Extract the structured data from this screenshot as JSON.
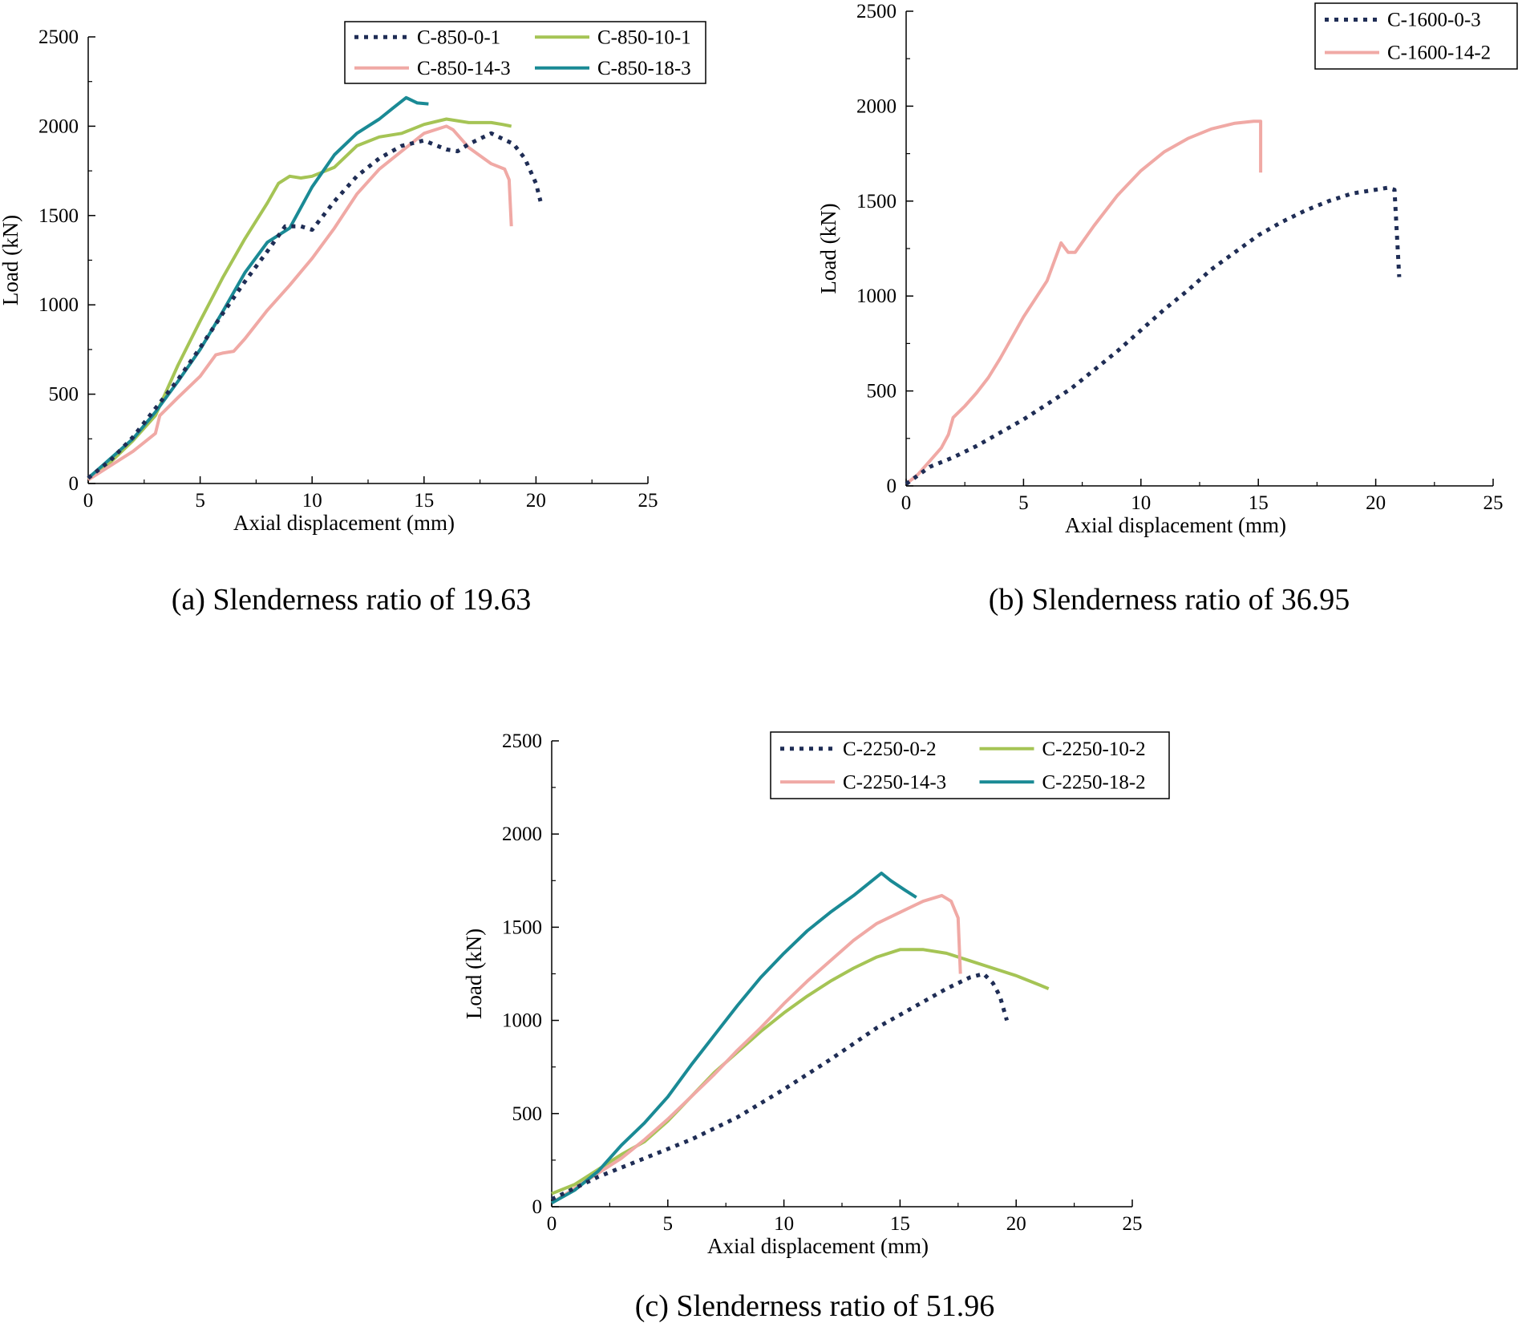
{
  "chart_data": [
    {
      "type": "line",
      "id": "a",
      "caption": "(a) Slenderness ratio of 19.63",
      "xlabel": "Axial displacement (mm)",
      "ylabel": "Load (kN)",
      "xlim": [
        0,
        25
      ],
      "ylim": [
        0,
        2500
      ],
      "xticks": [
        "0",
        "5",
        "10",
        "15",
        "20",
        "25"
      ],
      "yticks": [
        "0",
        "500",
        "1000",
        "1500",
        "2000",
        "2500"
      ],
      "legend_position": "top-right",
      "legend_columns": 2,
      "series": [
        {
          "name": "C-850-0-1",
          "color": "#1f2d55",
          "style": "dotted",
          "points": [
            [
              0,
              30
            ],
            [
              1,
              130
            ],
            [
              2,
              260
            ],
            [
              3,
              420
            ],
            [
              4,
              580
            ],
            [
              5,
              760
            ],
            [
              6,
              950
            ],
            [
              7,
              1130
            ],
            [
              8,
              1300
            ],
            [
              8.8,
              1440
            ],
            [
              9.5,
              1440
            ],
            [
              10,
              1420
            ],
            [
              10.5,
              1500
            ],
            [
              11,
              1580
            ],
            [
              12,
              1720
            ],
            [
              13,
              1820
            ],
            [
              14,
              1890
            ],
            [
              15,
              1920
            ],
            [
              16,
              1870
            ],
            [
              16.5,
              1860
            ],
            [
              17,
              1900
            ],
            [
              18,
              1960
            ],
            [
              19,
              1900
            ],
            [
              19.5,
              1820
            ],
            [
              20,
              1680
            ],
            [
              20.2,
              1580
            ]
          ]
        },
        {
          "name": "C-850-10-1",
          "color": "#a5c455",
          "style": "solid",
          "points": [
            [
              0,
              20
            ],
            [
              1,
              120
            ],
            [
              2,
              240
            ],
            [
              3,
              380
            ],
            [
              4,
              660
            ],
            [
              5,
              910
            ],
            [
              6,
              1150
            ],
            [
              7,
              1370
            ],
            [
              8,
              1570
            ],
            [
              8.5,
              1680
            ],
            [
              9,
              1720
            ],
            [
              9.5,
              1710
            ],
            [
              10,
              1720
            ],
            [
              11,
              1770
            ],
            [
              12,
              1890
            ],
            [
              13,
              1940
            ],
            [
              14,
              1960
            ],
            [
              15,
              2010
            ],
            [
              16,
              2040
            ],
            [
              17,
              2020
            ],
            [
              18,
              2020
            ],
            [
              18.5,
              2010
            ],
            [
              18.9,
              2000
            ]
          ]
        },
        {
          "name": "C-850-14-3",
          "color": "#f0a9a5",
          "style": "solid",
          "points": [
            [
              0,
              20
            ],
            [
              1,
              100
            ],
            [
              2,
              180
            ],
            [
              3,
              280
            ],
            [
              3.2,
              380
            ],
            [
              4,
              480
            ],
            [
              5,
              600
            ],
            [
              5.7,
              720
            ],
            [
              6,
              730
            ],
            [
              6.5,
              740
            ],
            [
              7,
              810
            ],
            [
              8,
              970
            ],
            [
              9,
              1110
            ],
            [
              10,
              1260
            ],
            [
              11,
              1430
            ],
            [
              12,
              1620
            ],
            [
              13,
              1760
            ],
            [
              14,
              1860
            ],
            [
              15,
              1960
            ],
            [
              16,
              2000
            ],
            [
              16.3,
              1980
            ],
            [
              17,
              1880
            ],
            [
              18,
              1790
            ],
            [
              18.6,
              1760
            ],
            [
              18.8,
              1700
            ],
            [
              18.9,
              1440
            ]
          ]
        },
        {
          "name": "C-850-18-3",
          "color": "#1a8a95",
          "style": "solid",
          "points": [
            [
              0,
              30
            ],
            [
              1,
              140
            ],
            [
              2,
              250
            ],
            [
              3,
              400
            ],
            [
              4,
              570
            ],
            [
              5,
              750
            ],
            [
              6,
              960
            ],
            [
              7,
              1180
            ],
            [
              8,
              1350
            ],
            [
              9,
              1430
            ],
            [
              10,
              1660
            ],
            [
              11,
              1840
            ],
            [
              12,
              1960
            ],
            [
              13,
              2040
            ],
            [
              13.6,
              2100
            ],
            [
              14.2,
              2160
            ],
            [
              14.7,
              2130
            ],
            [
              15.2,
              2125
            ]
          ]
        }
      ]
    },
    {
      "type": "line",
      "id": "b",
      "caption": "(b) Slenderness ratio of 36.95",
      "xlabel": "Axial displacement (mm)",
      "ylabel": "Load (kN)",
      "xlim": [
        0,
        25
      ],
      "ylim": [
        0,
        2500
      ],
      "xticks": [
        "0",
        "5",
        "10",
        "15",
        "20",
        "25"
      ],
      "yticks": [
        "0",
        "500",
        "1000",
        "1500",
        "2000",
        "2500"
      ],
      "legend_position": "top-right",
      "legend_columns": 1,
      "series": [
        {
          "name": "C-1600-0-3",
          "color": "#1f2d55",
          "style": "dotted",
          "points": [
            [
              0,
              10
            ],
            [
              1,
              100
            ],
            [
              2,
              150
            ],
            [
              3,
              210
            ],
            [
              4,
              280
            ],
            [
              5,
              350
            ],
            [
              6,
              430
            ],
            [
              7,
              510
            ],
            [
              8,
              610
            ],
            [
              9,
              710
            ],
            [
              10,
              820
            ],
            [
              11,
              930
            ],
            [
              12,
              1030
            ],
            [
              13,
              1140
            ],
            [
              14,
              1230
            ],
            [
              15,
              1320
            ],
            [
              16,
              1390
            ],
            [
              17,
              1450
            ],
            [
              18,
              1500
            ],
            [
              19,
              1540
            ],
            [
              20,
              1560
            ],
            [
              20.5,
              1570
            ],
            [
              20.8,
              1560
            ],
            [
              21,
              1100
            ]
          ]
        },
        {
          "name": "C-1600-14-2",
          "color": "#f0a9a5",
          "style": "solid",
          "points": [
            [
              0,
              10
            ],
            [
              0.5,
              60
            ],
            [
              1,
              130
            ],
            [
              1.5,
              200
            ],
            [
              1.8,
              270
            ],
            [
              2,
              360
            ],
            [
              2.5,
              420
            ],
            [
              3,
              490
            ],
            [
              3.5,
              570
            ],
            [
              4,
              670
            ],
            [
              5,
              890
            ],
            [
              6,
              1080
            ],
            [
              6.6,
              1280
            ],
            [
              6.9,
              1230
            ],
            [
              7.2,
              1230
            ],
            [
              8,
              1370
            ],
            [
              9,
              1530
            ],
            [
              10,
              1660
            ],
            [
              11,
              1760
            ],
            [
              12,
              1830
            ],
            [
              13,
              1880
            ],
            [
              14,
              1910
            ],
            [
              14.8,
              1920
            ],
            [
              15.1,
              1920
            ],
            [
              15.1,
              1650
            ]
          ]
        }
      ]
    },
    {
      "type": "line",
      "id": "c",
      "caption": "(c) Slenderness ratio of 51.96",
      "xlabel": "Axial displacement (mm)",
      "ylabel": "Load (kN)",
      "xlim": [
        0,
        25
      ],
      "ylim": [
        0,
        2500
      ],
      "xticks": [
        "0",
        "5",
        "10",
        "15",
        "20",
        "25"
      ],
      "yticks": [
        "0",
        "500",
        "1000",
        "1500",
        "2000",
        "2500"
      ],
      "legend_position": "top-right",
      "legend_columns": 2,
      "series": [
        {
          "name": "C-2250-0-2",
          "color": "#1f2d55",
          "style": "dotted",
          "points": [
            [
              0,
              40
            ],
            [
              2,
              160
            ],
            [
              4,
              260
            ],
            [
              6,
              360
            ],
            [
              8,
              480
            ],
            [
              10,
              630
            ],
            [
              12,
              790
            ],
            [
              14,
              960
            ],
            [
              16,
              1100
            ],
            [
              17,
              1170
            ],
            [
              18,
              1230
            ],
            [
              18.6,
              1250
            ],
            [
              19,
              1200
            ],
            [
              19.3,
              1130
            ],
            [
              19.6,
              1000
            ]
          ]
        },
        {
          "name": "C-2250-10-2",
          "color": "#a5c455",
          "style": "solid",
          "points": [
            [
              0,
              70
            ],
            [
              1,
              120
            ],
            [
              2,
              200
            ],
            [
              3,
              280
            ],
            [
              4,
              350
            ],
            [
              5,
              460
            ],
            [
              6,
              590
            ],
            [
              7,
              720
            ],
            [
              8,
              830
            ],
            [
              9,
              940
            ],
            [
              10,
              1040
            ],
            [
              11,
              1130
            ],
            [
              12,
              1210
            ],
            [
              13,
              1280
            ],
            [
              14,
              1340
            ],
            [
              15,
              1380
            ],
            [
              16,
              1380
            ],
            [
              17,
              1360
            ],
            [
              18,
              1320
            ],
            [
              19,
              1280
            ],
            [
              20,
              1240
            ],
            [
              21,
              1190
            ],
            [
              21.4,
              1170
            ]
          ]
        },
        {
          "name": "C-2250-14-3",
          "color": "#f0a9a5",
          "style": "solid",
          "points": [
            [
              0,
              20
            ],
            [
              1,
              100
            ],
            [
              2,
              180
            ],
            [
              3,
              260
            ],
            [
              4,
              360
            ],
            [
              5,
              470
            ],
            [
              6,
              590
            ],
            [
              7,
              710
            ],
            [
              8,
              840
            ],
            [
              9,
              960
            ],
            [
              10,
              1090
            ],
            [
              11,
              1210
            ],
            [
              12,
              1320
            ],
            [
              13,
              1430
            ],
            [
              14,
              1520
            ],
            [
              15,
              1580
            ],
            [
              16,
              1640
            ],
            [
              16.8,
              1670
            ],
            [
              17.2,
              1640
            ],
            [
              17.5,
              1550
            ],
            [
              17.6,
              1250
            ]
          ]
        },
        {
          "name": "C-2250-18-2",
          "color": "#1a8a95",
          "style": "solid",
          "points": [
            [
              0,
              20
            ],
            [
              1,
              90
            ],
            [
              2,
              190
            ],
            [
              3,
              330
            ],
            [
              4,
              450
            ],
            [
              5,
              590
            ],
            [
              6,
              760
            ],
            [
              7,
              920
            ],
            [
              8,
              1080
            ],
            [
              9,
              1230
            ],
            [
              10,
              1360
            ],
            [
              11,
              1480
            ],
            [
              12,
              1580
            ],
            [
              13,
              1670
            ],
            [
              13.8,
              1750
            ],
            [
              14.2,
              1790
            ],
            [
              14.6,
              1750
            ],
            [
              15.2,
              1700
            ],
            [
              15.7,
              1660
            ]
          ]
        }
      ]
    }
  ]
}
